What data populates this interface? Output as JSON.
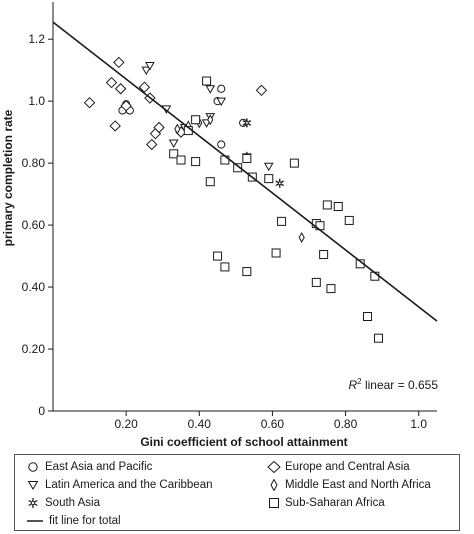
{
  "chart_data": {
    "type": "scatter",
    "title": "",
    "xlabel": "Gini coefficient of school attainment",
    "ylabel": "primary completion rate",
    "xlim": [
      0,
      1.05
    ],
    "ylim": [
      0,
      1.32
    ],
    "xticks": [
      0.2,
      0.4,
      0.6,
      0.8,
      1.0
    ],
    "xtick_labels": [
      "0.20",
      "0.40",
      "0.60",
      "0.80",
      "1.0"
    ],
    "yticks": [
      0.2,
      0.4,
      0.6,
      0.8,
      1.0,
      1.2
    ],
    "ytick_labels": [
      "0.20",
      "0.40",
      "0.60",
      "0.80",
      "1.0",
      "1.2"
    ],
    "grid": false,
    "legend_position": "bottom",
    "annotation": {
      "prefix": "R",
      "sup": "2",
      "suffix": " linear = 0.655"
    },
    "fit_line": {
      "name": "fit line for total",
      "x": [
        0,
        1.05
      ],
      "y": [
        1.255,
        0.29
      ]
    },
    "series": [
      {
        "name": "East Asia and Pacific",
        "marker": "circle",
        "points": [
          [
            0.19,
            0.97
          ],
          [
            0.2,
            0.99
          ],
          [
            0.21,
            0.97
          ],
          [
            0.45,
            1.0
          ],
          [
            0.46,
            1.04
          ],
          [
            0.46,
            0.86
          ],
          [
            0.52,
            0.93
          ]
        ]
      },
      {
        "name": "Europe and Central Asia",
        "marker": "diamond",
        "points": [
          [
            0.1,
            0.995
          ],
          [
            0.16,
            1.06
          ],
          [
            0.17,
            0.92
          ],
          [
            0.18,
            1.125
          ],
          [
            0.185,
            1.04
          ],
          [
            0.2,
            0.985
          ],
          [
            0.25,
            1.045
          ],
          [
            0.265,
            1.01
          ],
          [
            0.27,
            0.86
          ],
          [
            0.28,
            0.895
          ],
          [
            0.29,
            0.915
          ],
          [
            0.35,
            0.9
          ],
          [
            0.57,
            1.035
          ]
        ]
      },
      {
        "name": "Latin America and the Caribbean",
        "marker": "triangle",
        "points": [
          [
            0.255,
            1.1
          ],
          [
            0.265,
            1.115
          ],
          [
            0.31,
            0.975
          ],
          [
            0.33,
            0.865
          ],
          [
            0.36,
            0.915
          ],
          [
            0.39,
            0.94
          ],
          [
            0.42,
            0.93
          ],
          [
            0.43,
            0.95
          ],
          [
            0.43,
            1.04
          ],
          [
            0.46,
            1.0
          ],
          [
            0.53,
            0.82
          ],
          [
            0.59,
            0.79
          ]
        ]
      },
      {
        "name": "Middle East and North Africa",
        "marker": "diamond-small",
        "points": [
          [
            0.34,
            0.91
          ],
          [
            0.37,
            0.92
          ],
          [
            0.4,
            0.93
          ],
          [
            0.43,
            0.94
          ],
          [
            0.53,
            0.82
          ],
          [
            0.68,
            0.56
          ]
        ]
      },
      {
        "name": "South Asia",
        "marker": "star",
        "points": [
          [
            0.53,
            0.93
          ],
          [
            0.62,
            0.735
          ]
        ]
      },
      {
        "name": "Sub-Saharan Africa",
        "marker": "square",
        "points": [
          [
            0.33,
            0.83
          ],
          [
            0.35,
            0.81
          ],
          [
            0.37,
            0.905
          ],
          [
            0.39,
            0.805
          ],
          [
            0.39,
            0.94
          ],
          [
            0.42,
            1.065
          ],
          [
            0.43,
            0.74
          ],
          [
            0.47,
            0.81
          ],
          [
            0.505,
            0.785
          ],
          [
            0.53,
            0.815
          ],
          [
            0.545,
            0.755
          ],
          [
            0.59,
            0.75
          ],
          [
            0.61,
            0.51
          ],
          [
            0.625,
            0.612
          ],
          [
            0.66,
            0.8
          ],
          [
            0.72,
            0.605
          ],
          [
            0.73,
            0.598
          ],
          [
            0.74,
            0.505
          ],
          [
            0.75,
            0.665
          ],
          [
            0.78,
            0.66
          ],
          [
            0.81,
            0.615
          ],
          [
            0.84,
            0.475
          ],
          [
            0.88,
            0.435
          ],
          [
            0.86,
            0.305
          ],
          [
            0.89,
            0.235
          ],
          [
            0.45,
            0.5
          ],
          [
            0.47,
            0.465
          ],
          [
            0.53,
            0.45
          ],
          [
            0.72,
            0.415
          ],
          [
            0.76,
            0.395
          ]
        ]
      }
    ]
  },
  "legend": {
    "items": [
      {
        "label": "East Asia and Pacific",
        "marker": "circle"
      },
      {
        "label": "Europe and Central Asia",
        "marker": "diamond"
      },
      {
        "label": "Latin America and the Caribbean",
        "marker": "triangle"
      },
      {
        "label": "Middle East and North Africa",
        "marker": "diamond-small"
      },
      {
        "label": "South Asia",
        "marker": "star"
      },
      {
        "label": "Sub-Saharan Africa",
        "marker": "square"
      },
      {
        "label": "fit line for total",
        "marker": "line"
      }
    ]
  }
}
